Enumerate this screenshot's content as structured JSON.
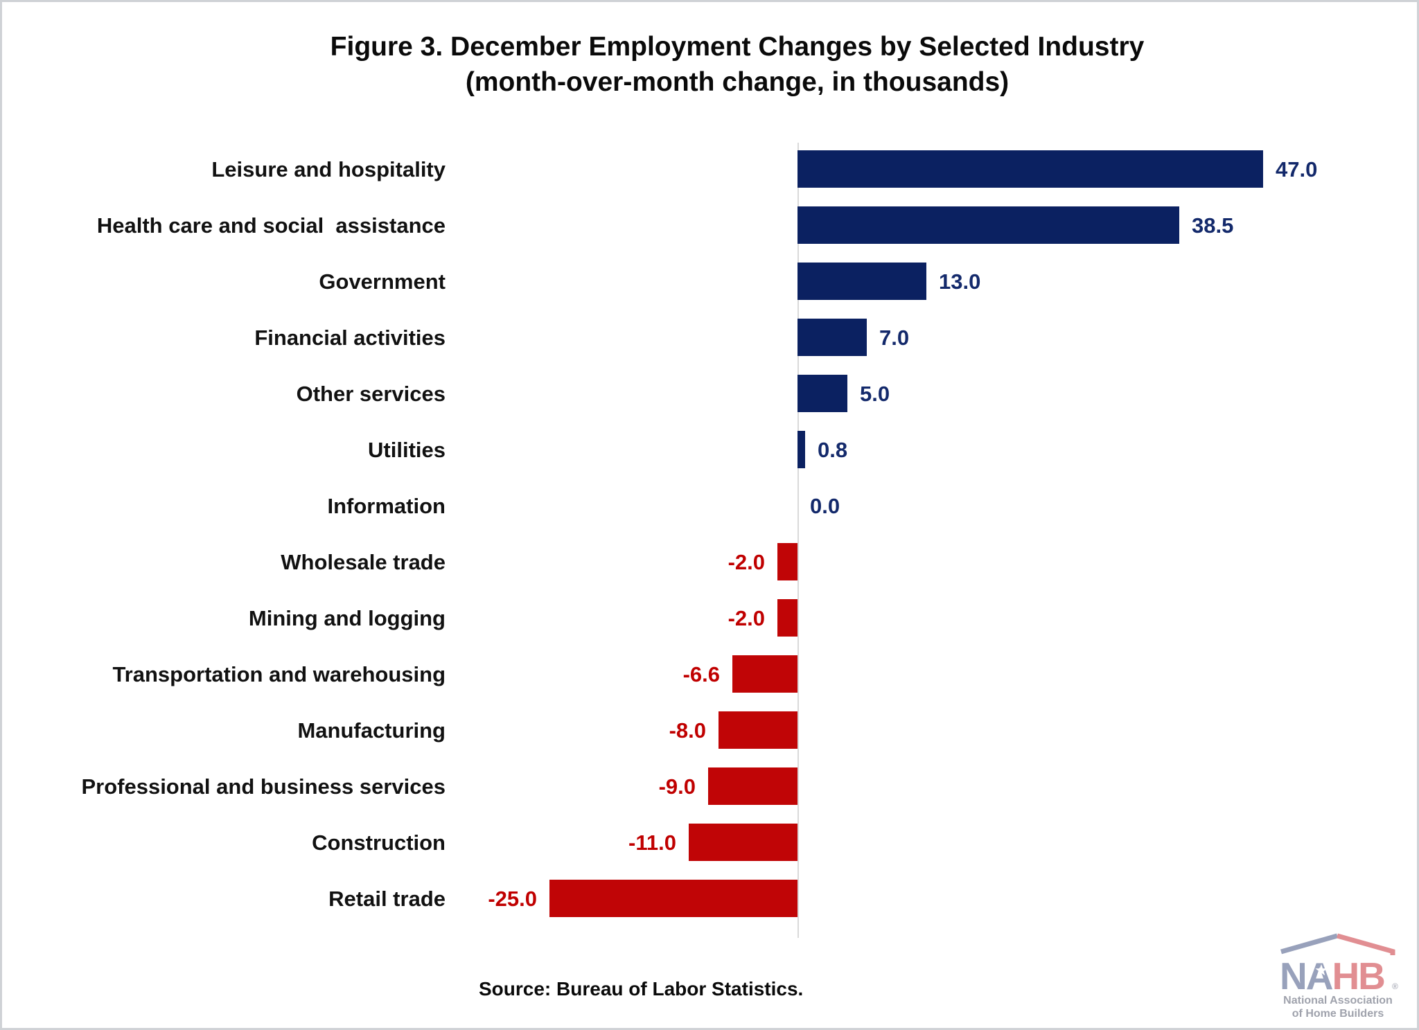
{
  "page": {
    "title_line1": "Figure 3. December Employment Changes by Selected Industry",
    "title_line2": "(month-over-month change, in thousands)",
    "source": "Source: Bureau of Labor Statistics."
  },
  "chart_data": {
    "type": "bar",
    "orientation": "horizontal",
    "title": "Figure 3. December Employment Changes by Selected Industry (month-over-month change, in thousands)",
    "xlabel": "",
    "ylabel": "",
    "xlim": [
      -25,
      47
    ],
    "grid": false,
    "legend": false,
    "categories": [
      "Leisure and hospitality",
      "Health care and social  assistance",
      "Government",
      "Financial activities",
      "Other services",
      "Utilities",
      "Information",
      "Wholesale trade",
      "Mining and logging",
      "Transportation and warehousing",
      "Manufacturing",
      "Professional and business services",
      "Construction",
      "Retail trade"
    ],
    "values": [
      47.0,
      38.5,
      13.0,
      7.0,
      5.0,
      0.8,
      0.0,
      -2.0,
      -2.0,
      -6.6,
      -8.0,
      -9.0,
      -11.0,
      -25.0
    ],
    "value_labels": [
      "47.0",
      "38.5",
      "13.0",
      "7.0",
      "5.0",
      "0.8",
      "0.0",
      "-2.0",
      "-2.0",
      "-6.6",
      "-8.0",
      "-9.0",
      "-11.0",
      "-25.0"
    ],
    "positive_color": "#0b2161",
    "negative_color": "#c00506",
    "positive_label_color": "#13296b",
    "negative_label_color": "#c00000",
    "axis_color": "#d9d9d9"
  },
  "logo": {
    "text_na": "NA",
    "text_hb": "HB",
    "registered": "®",
    "line1": "National Association",
    "line2": "of Home Builders",
    "blue": "#98a1bb",
    "red": "#e18e92",
    "gray": "#9fa2ac"
  }
}
